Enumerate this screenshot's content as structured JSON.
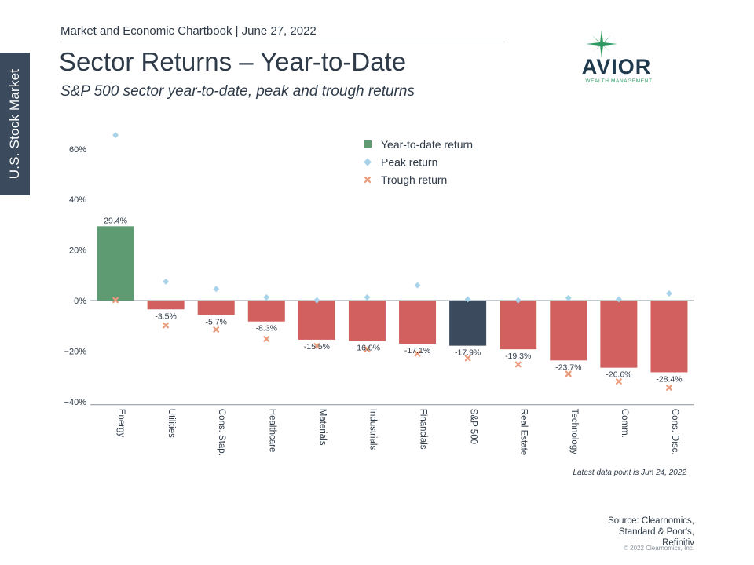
{
  "side_tab": "U.S. Stock Market",
  "header": "Market and Economic Chartbook | June 27, 2022",
  "title": "Sector Returns – Year-to-Date",
  "subtitle": "S&P 500 sector year-to-date, peak and trough returns",
  "logo": {
    "name": "AVIOR",
    "tagline": "WEALTH MANAGEMENT",
    "color": "#1f3a4d",
    "accent": "#2e9a62"
  },
  "footnote": "Latest data point is Jun 24, 2022",
  "source_lines": [
    "Source: Clearnomics,",
    "Standard & Poor's,",
    "Refinitiv"
  ],
  "copyright": "© 2022 Clearnomics, Inc.",
  "chart_data": {
    "type": "bar",
    "categories": [
      "Energy",
      "Utilities",
      "Cons. Stap.",
      "Healthcare",
      "Materials",
      "Industrials",
      "Financials",
      "S&P 500",
      "Real Estate",
      "Technology",
      "Comm.",
      "Cons. Disc."
    ],
    "series": [
      {
        "name": "Year-to-date return",
        "values": [
          29.4,
          -3.5,
          -5.7,
          -8.3,
          -15.5,
          -16.0,
          -17.1,
          -17.9,
          -19.3,
          -23.7,
          -26.6,
          -28.4
        ]
      },
      {
        "name": "Peak return",
        "values": [
          65.5,
          7.5,
          4.6,
          1.3,
          0.1,
          1.3,
          6.0,
          0.5,
          0.1,
          1.0,
          0.5,
          2.8
        ]
      },
      {
        "name": "Trough return",
        "values": [
          0.2,
          -9.8,
          -11.5,
          -15.2,
          -18.0,
          -19.2,
          -21.0,
          -22.8,
          -25.3,
          -29.0,
          -32.0,
          -34.5
        ]
      }
    ],
    "data_labels": [
      "29.4%",
      "-3.5%",
      "-5.7%",
      "-8.3%",
      "-15.5%",
      "-16.0%",
      "-17.1%",
      "-17.9%",
      "-19.3%",
      "-23.7%",
      "-26.6%",
      "-28.4%"
    ],
    "y_ticks": [
      60,
      40,
      20,
      0,
      -20,
      -40
    ],
    "y_tick_labels": [
      "60%",
      "40%",
      "20%",
      "0%",
      "−20%",
      "−40%"
    ],
    "ylim": [
      -42,
      68
    ],
    "legend_position": "top-center",
    "colors": {
      "positive": "#5e9b73",
      "negative": "#d2605f",
      "benchmark": "#3b4a5c",
      "peak": "#a9d3ea",
      "trough": "#e89a7c"
    }
  }
}
